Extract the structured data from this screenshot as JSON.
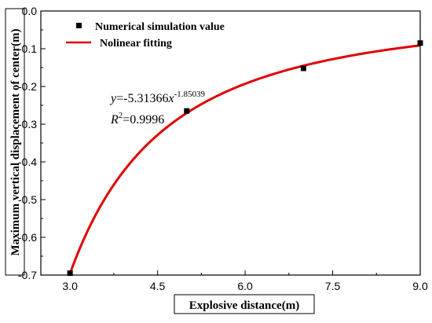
{
  "chart_data": {
    "type": "scatter",
    "xlabel": "Explosive distance(m)",
    "ylabel": "Maximum vertical displacement of center(m)",
    "xlim": [
      2.5,
      9.0
    ],
    "ylim": [
      -0.7,
      0.0
    ],
    "xticks": [
      "3.0",
      "4.5",
      "6.0",
      "7.5",
      "9.0"
    ],
    "xtick_values": [
      3.0,
      4.5,
      6.0,
      7.5,
      9.0
    ],
    "yticks": [
      "0.0",
      "-0.1",
      "-0.2",
      "-0.3",
      "-0.4",
      "-0.5",
      "-0.6",
      "-0.7"
    ],
    "ytick_values": [
      0.0,
      -0.1,
      -0.2,
      -0.3,
      -0.4,
      -0.5,
      -0.6,
      -0.7
    ],
    "series": [
      {
        "name": "Numerical simulation value",
        "kind": "scatter",
        "marker": "square",
        "color": "#000000",
        "x": [
          3.0,
          5.0,
          7.0,
          9.0
        ],
        "y": [
          -0.695,
          -0.265,
          -0.152,
          -0.085
        ]
      },
      {
        "name": "Nolinear fitting",
        "kind": "line",
        "color": "#e00000",
        "equation": {
          "a": -5.31366,
          "b": -1.85039
        },
        "x_range": [
          3.0,
          9.0
        ]
      }
    ],
    "annotation": {
      "eq_y": "y",
      "eq_mid": "=-5.31366",
      "eq_x": "x",
      "eq_exp": "-1.85039",
      "r2_r": "R",
      "r2_sup": "2",
      "r2_val": "=0.9996"
    },
    "legend_position": "top-left",
    "grid": false
  }
}
